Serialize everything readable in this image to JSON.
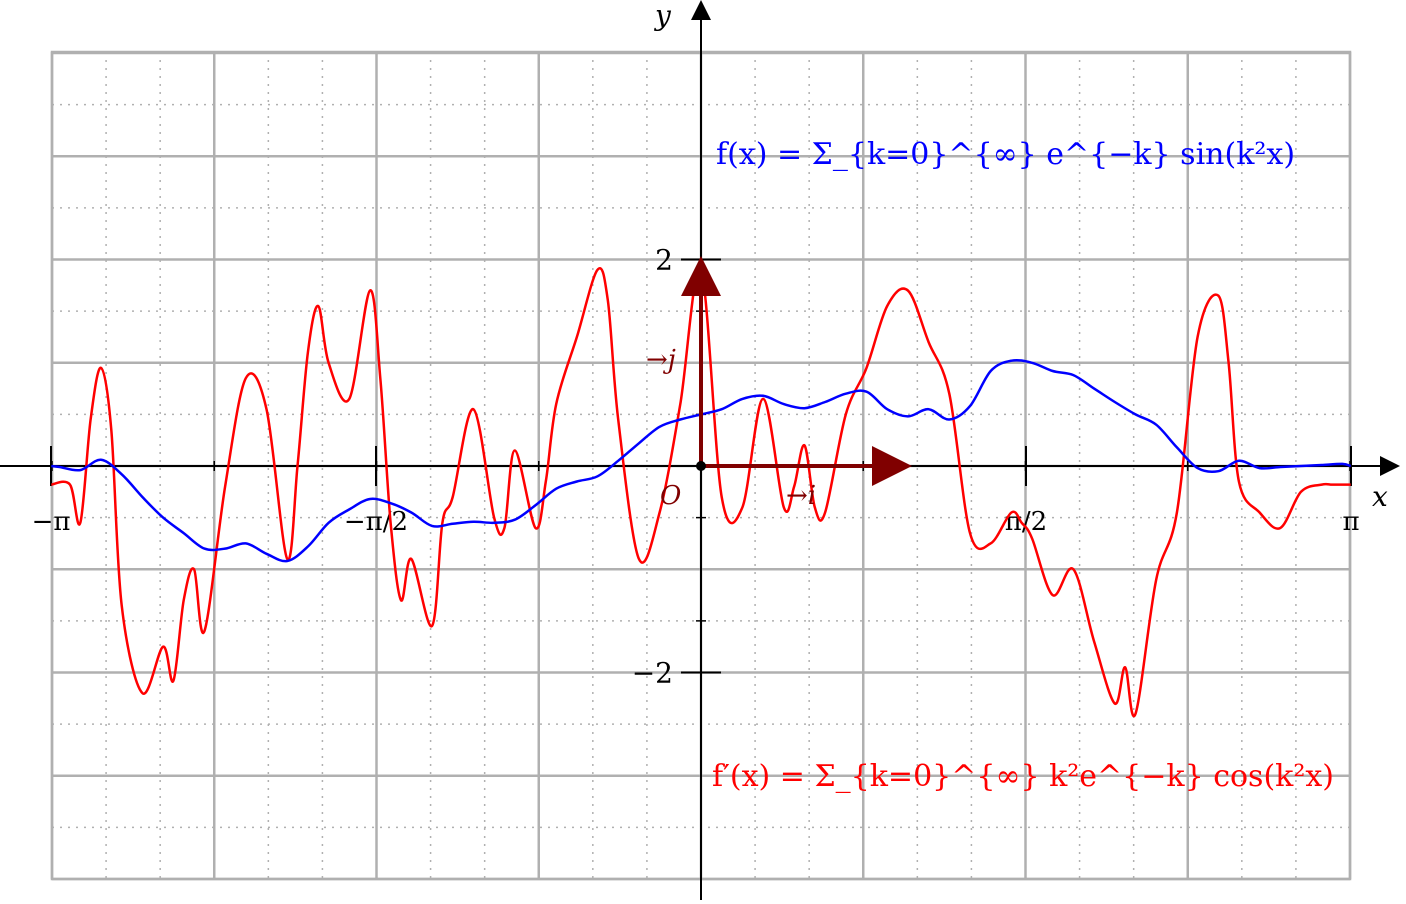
{
  "chart_data": {
    "type": "line",
    "xlabel": "x",
    "ylabel": "y",
    "xlim": [
      -3.14159,
      3.14159
    ],
    "ylim": [
      -2,
      2
    ],
    "grid": true,
    "x_ticks": [
      {
        "value": -3.14159,
        "label": "−π"
      },
      {
        "value": -1.5708,
        "label": "−π/2"
      },
      {
        "value": 1.5708,
        "label": "π/2"
      },
      {
        "value": 3.14159,
        "label": "π"
      }
    ],
    "y_ticks": [
      {
        "value": 2,
        "label": "2"
      },
      {
        "value": -2,
        "label": "−2"
      }
    ],
    "origin_label": "O",
    "vectors": [
      {
        "name": "i",
        "label": "→i",
        "dx": 1,
        "dy": 0
      },
      {
        "name": "j",
        "label": "→j",
        "dx": 0,
        "dy": 1
      }
    ],
    "vector_color": "#800000",
    "series": [
      {
        "name": "f",
        "formula": "f(x) = Σ_{k=0}^{∞} e^{−k} sin(k²x)",
        "color": "#0000ff",
        "x": [
          -3.14,
          -3.1,
          -3.0,
          -2.9,
          -2.8,
          -2.7,
          -2.6,
          -2.5,
          -2.4,
          -2.3,
          -2.2,
          -2.1,
          -2.0,
          -1.9,
          -1.8,
          -1.7,
          -1.6,
          -1.5,
          -1.4,
          -1.3,
          -1.2,
          -1.1,
          -1.0,
          -0.9,
          -0.8,
          -0.7,
          -0.6,
          -0.5,
          -0.4,
          -0.3,
          -0.2,
          -0.1,
          0.0,
          0.1,
          0.2,
          0.3,
          0.4,
          0.5,
          0.6,
          0.7,
          0.8,
          0.9,
          1.0,
          1.1,
          1.2,
          1.3,
          1.4,
          1.5,
          1.6,
          1.7,
          1.8,
          1.9,
          2.0,
          2.1,
          2.2,
          2.3,
          2.4,
          2.5,
          2.6,
          2.7,
          2.8,
          2.9,
          3.0,
          3.1,
          3.14
        ],
        "y": [
          0.0,
          -0.01,
          -0.04,
          0.06,
          -0.08,
          -0.3,
          -0.5,
          -0.65,
          -0.8,
          -0.8,
          -0.75,
          -0.85,
          -0.92,
          -0.78,
          -0.55,
          -0.42,
          -0.32,
          -0.36,
          -0.45,
          -0.58,
          -0.56,
          -0.54,
          -0.55,
          -0.52,
          -0.38,
          -0.22,
          -0.15,
          -0.1,
          0.05,
          0.22,
          0.38,
          0.45,
          0.5,
          0.55,
          0.65,
          0.68,
          0.6,
          0.56,
          0.62,
          0.7,
          0.72,
          0.55,
          0.48,
          0.55,
          0.45,
          0.58,
          0.92,
          1.02,
          1.0,
          0.92,
          0.88,
          0.75,
          0.62,
          0.5,
          0.4,
          0.18,
          -0.02,
          -0.05,
          0.05,
          -0.02,
          -0.01,
          0.0,
          0.01,
          0.02,
          0.0
        ],
        "note": "values in graph units where 1 unit = one major grid square (y axis labelled 2 at the top)"
      },
      {
        "name": "f'",
        "formula": "f′(x) = Σ_{k=0}^{∞} k²e^{−k} cos(k²x)",
        "color": "#ff0000",
        "x": [
          -3.14,
          -3.05,
          -3.0,
          -2.95,
          -2.9,
          -2.85,
          -2.8,
          -2.7,
          -2.6,
          -2.55,
          -2.5,
          -2.45,
          -2.4,
          -2.3,
          -2.2,
          -2.1,
          -2.0,
          -1.95,
          -1.9,
          -1.85,
          -1.8,
          -1.7,
          -1.6,
          -1.55,
          -1.5,
          -1.45,
          -1.4,
          -1.3,
          -1.25,
          -1.2,
          -1.1,
          -1.0,
          -0.95,
          -0.9,
          -0.8,
          -0.75,
          -0.7,
          -0.6,
          -0.5,
          -0.45,
          -0.4,
          -0.3,
          -0.2,
          -0.1,
          0.0,
          0.1,
          0.2,
          0.3,
          0.4,
          0.45,
          0.5,
          0.55,
          0.6,
          0.7,
          0.8,
          0.9,
          1.0,
          1.1,
          1.2,
          1.3,
          1.4,
          1.5,
          1.55,
          1.6,
          1.7,
          1.8,
          1.9,
          2.0,
          2.05,
          2.1,
          2.2,
          2.3,
          2.4,
          2.5,
          2.55,
          2.6,
          2.7,
          2.8,
          2.9,
          3.0,
          3.05,
          3.1,
          3.14
        ],
        "y": [
          -0.18,
          -0.18,
          -0.55,
          0.45,
          0.95,
          0.35,
          -1.35,
          -2.2,
          -1.75,
          -2.08,
          -1.3,
          -1.0,
          -1.6,
          -0.2,
          0.85,
          0.55,
          -0.9,
          0.0,
          1.1,
          1.55,
          1.0,
          0.65,
          1.7,
          0.85,
          -0.55,
          -1.3,
          -0.9,
          -1.55,
          -0.55,
          -0.3,
          0.55,
          -0.5,
          -0.6,
          0.15,
          -0.6,
          -0.15,
          0.6,
          1.25,
          1.9,
          1.6,
          0.45,
          -0.9,
          -0.45,
          0.6,
          1.9,
          -0.3,
          -0.4,
          0.65,
          -0.4,
          -0.2,
          0.2,
          -0.4,
          -0.45,
          0.5,
          0.95,
          1.55,
          1.7,
          1.2,
          0.7,
          -0.65,
          -0.75,
          -0.45,
          -0.55,
          -0.7,
          -1.25,
          -1.0,
          -1.7,
          -2.3,
          -1.95,
          -2.4,
          -1.1,
          -0.45,
          1.25,
          1.65,
          1.0,
          -0.15,
          -0.45,
          -0.6,
          -0.25,
          -0.18,
          -0.18,
          -0.18,
          -0.18
        ],
        "note": "values in graph units where 1 unit = one major grid square"
      }
    ]
  }
}
